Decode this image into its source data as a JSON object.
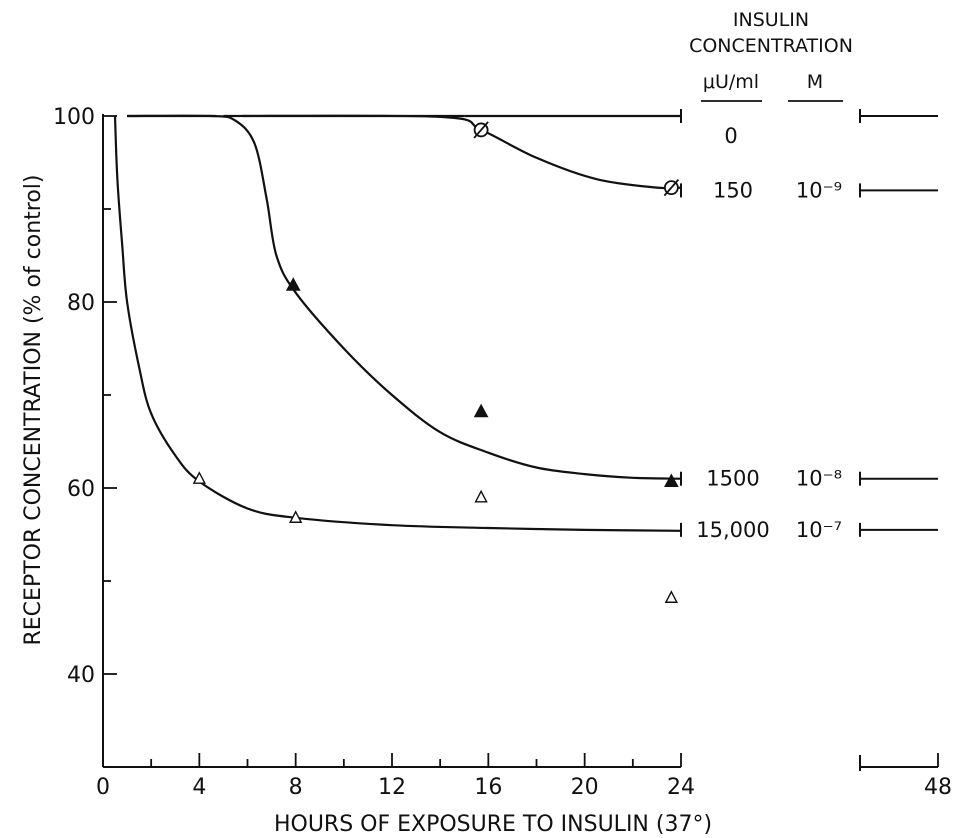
{
  "chart_data": {
    "type": "line",
    "title": "",
    "xlabel": "HOURS OF EXPOSURE TO INSULIN (37°)",
    "ylabel": "RECEPTOR CONCENTRATION (% of control)",
    "xlim": [
      0,
      48
    ],
    "ylim": [
      30,
      100
    ],
    "x_axis_break": [
      24,
      44
    ],
    "x_ticks": [
      0,
      4,
      8,
      12,
      16,
      20,
      24,
      48
    ],
    "x_tick_labels": [
      "0",
      "4",
      "8",
      "12",
      "16",
      "20",
      "24",
      "48"
    ],
    "y_ticks": [
      40,
      60,
      80,
      100
    ],
    "y_tick_labels": [
      "40",
      "60",
      "80",
      "100"
    ],
    "legend_header": {
      "title_line1": "INSULIN",
      "title_line2": "CONCENTRATION",
      "col1": "μU/ml",
      "col2": "M"
    },
    "series": [
      {
        "marker": "circle-slash",
        "insulin_uU_ml": "150",
        "insulin_M": "10⁻⁹",
        "points": [
          [
            15.7,
            98.5
          ],
          [
            23.6,
            92.3
          ]
        ],
        "curve": [
          [
            5,
            100
          ],
          [
            14,
            99.9
          ],
          [
            15.7,
            98.5
          ],
          [
            18,
            95.5
          ],
          [
            20.5,
            93.2
          ],
          [
            23,
            92.3
          ],
          [
            24,
            92.3
          ]
        ],
        "end_value": 92
      },
      {
        "marker": "filled-triangle",
        "insulin_uU_ml": "1500",
        "insulin_M": "10⁻⁸",
        "points": [
          [
            7.9,
            81.8
          ],
          [
            15.7,
            68.2
          ],
          [
            23.6,
            60.7
          ]
        ],
        "curve": [
          [
            1,
            100
          ],
          [
            4.5,
            100
          ],
          [
            5.5,
            99.5
          ],
          [
            6.3,
            97
          ],
          [
            6.8,
            91
          ],
          [
            7.2,
            85
          ],
          [
            8,
            81
          ],
          [
            10,
            75
          ],
          [
            12,
            70
          ],
          [
            14,
            66
          ],
          [
            16,
            63.8
          ],
          [
            18,
            62.2
          ],
          [
            20,
            61.5
          ],
          [
            22,
            61.1
          ],
          [
            24,
            61
          ]
        ],
        "end_value": 61
      },
      {
        "marker": "open-triangle",
        "insulin_uU_ml": "15,000",
        "insulin_M": "10⁻⁷",
        "points": [
          [
            4,
            61
          ],
          [
            8,
            56.8
          ],
          [
            15.7,
            59
          ],
          [
            23.6,
            48.2
          ]
        ],
        "curve": [
          [
            0.5,
            100
          ],
          [
            0.6,
            93
          ],
          [
            0.8,
            86
          ],
          [
            1,
            80
          ],
          [
            1.5,
            73
          ],
          [
            2,
            68
          ],
          [
            3,
            63.5
          ],
          [
            4,
            60.7
          ],
          [
            6,
            57.8
          ],
          [
            8,
            56.8
          ],
          [
            12,
            56
          ],
          [
            16,
            55.7
          ],
          [
            20,
            55.5
          ],
          [
            24,
            55.4
          ]
        ],
        "end_value": 55.5
      }
    ],
    "control": {
      "insulin_uU_ml": "0",
      "y": 100,
      "segments": [
        [
          1,
          4.7
        ],
        [
          5.8,
          15
        ],
        [
          15,
          24
        ]
      ]
    }
  }
}
